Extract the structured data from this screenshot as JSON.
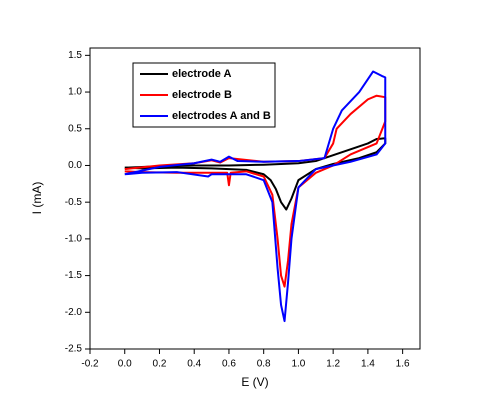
{
  "chart_data": {
    "type": "line",
    "xlabel": "E (V)",
    "ylabel": "I (mA)",
    "xlim": [
      -0.2,
      1.7
    ],
    "xticks": [
      -0.2,
      {
        "value": 0,
        "label": "0.0"
      },
      0.2,
      0.4,
      0.6,
      0.8,
      {
        "value": 1,
        "label": "1.0"
      },
      1.2,
      1.4,
      1.6
    ],
    "ylim": [
      -2.5,
      1.6
    ],
    "yticks": [
      1.5,
      {
        "value": 1,
        "label": "1.0"
      },
      0.5,
      {
        "value": 0,
        "label": "0.0"
      },
      -0.5,
      {
        "value": -1,
        "label": "-1.0"
      },
      -1.5,
      {
        "value": -2,
        "label": "-2.0"
      },
      -2.5
    ],
    "legend": "upper left",
    "series": [
      {
        "name": "electrode A",
        "color": "#000000",
        "x": [
          0,
          0.2,
          0.4,
          0.6,
          0.8,
          1.0,
          1.1,
          1.2,
          1.3,
          1.4,
          1.45,
          1.5,
          1.5,
          1.45,
          1.35,
          1.2,
          1.1,
          1.0,
          0.96,
          0.93,
          0.9,
          0.87,
          0.84,
          0.8,
          0.7,
          0.5,
          0.3,
          0.1,
          0
        ],
        "values": [
          -0.03,
          -0.01,
          0,
          0,
          0.01,
          0.03,
          0.06,
          0.14,
          0.22,
          0.3,
          0.36,
          0.37,
          0.3,
          0.18,
          0.1,
          0.02,
          -0.05,
          -0.2,
          -0.45,
          -0.6,
          -0.5,
          -0.32,
          -0.2,
          -0.12,
          -0.06,
          -0.04,
          -0.03,
          -0.04,
          -0.03
        ]
      },
      {
        "name": "electrode B",
        "color": "#ff0000",
        "x": [
          0,
          0.2,
          0.4,
          0.5,
          0.55,
          0.6,
          0.8,
          1.0,
          1.15,
          1.2,
          1.22,
          1.3,
          1.4,
          1.45,
          1.5,
          1.5,
          1.45,
          1.3,
          1.2,
          1.1,
          1.0,
          0.96,
          0.94,
          0.92,
          0.9,
          0.88,
          0.85,
          0.8,
          0.7,
          0.61,
          0.6,
          0.59,
          0.5,
          0.3,
          0.1,
          0
        ],
        "values": [
          -0.05,
          0.0,
          0.03,
          0.07,
          0.04,
          0.1,
          0.05,
          0.06,
          0.1,
          0.3,
          0.5,
          0.7,
          0.9,
          0.95,
          0.93,
          0.6,
          0.3,
          0.15,
          0.0,
          -0.1,
          -0.3,
          -0.8,
          -1.3,
          -1.65,
          -1.5,
          -1.0,
          -0.4,
          -0.15,
          -0.08,
          -0.1,
          -0.27,
          -0.1,
          -0.1,
          -0.1,
          -0.09,
          -0.08
        ]
      },
      {
        "name": "electrodes A and B",
        "color": "#0000ff",
        "x": [
          0,
          0.2,
          0.4,
          0.5,
          0.55,
          0.6,
          0.65,
          0.8,
          1.0,
          1.15,
          1.2,
          1.25,
          1.35,
          1.43,
          1.48,
          1.5,
          1.5,
          1.45,
          1.3,
          1.1,
          1.0,
          0.96,
          0.94,
          0.92,
          0.9,
          0.88,
          0.85,
          0.8,
          0.7,
          0.5,
          0.48,
          0.3,
          0.1,
          0
        ],
        "values": [
          -0.12,
          -0.02,
          0.03,
          0.08,
          0.05,
          0.12,
          0.06,
          0.05,
          0.06,
          0.1,
          0.5,
          0.75,
          1.0,
          1.28,
          1.22,
          1.2,
          0.3,
          0.15,
          0.05,
          -0.05,
          -0.3,
          -1.0,
          -1.6,
          -2.12,
          -1.9,
          -1.4,
          -0.5,
          -0.2,
          -0.12,
          -0.12,
          -0.15,
          -0.09,
          -0.1,
          -0.12
        ]
      }
    ]
  }
}
